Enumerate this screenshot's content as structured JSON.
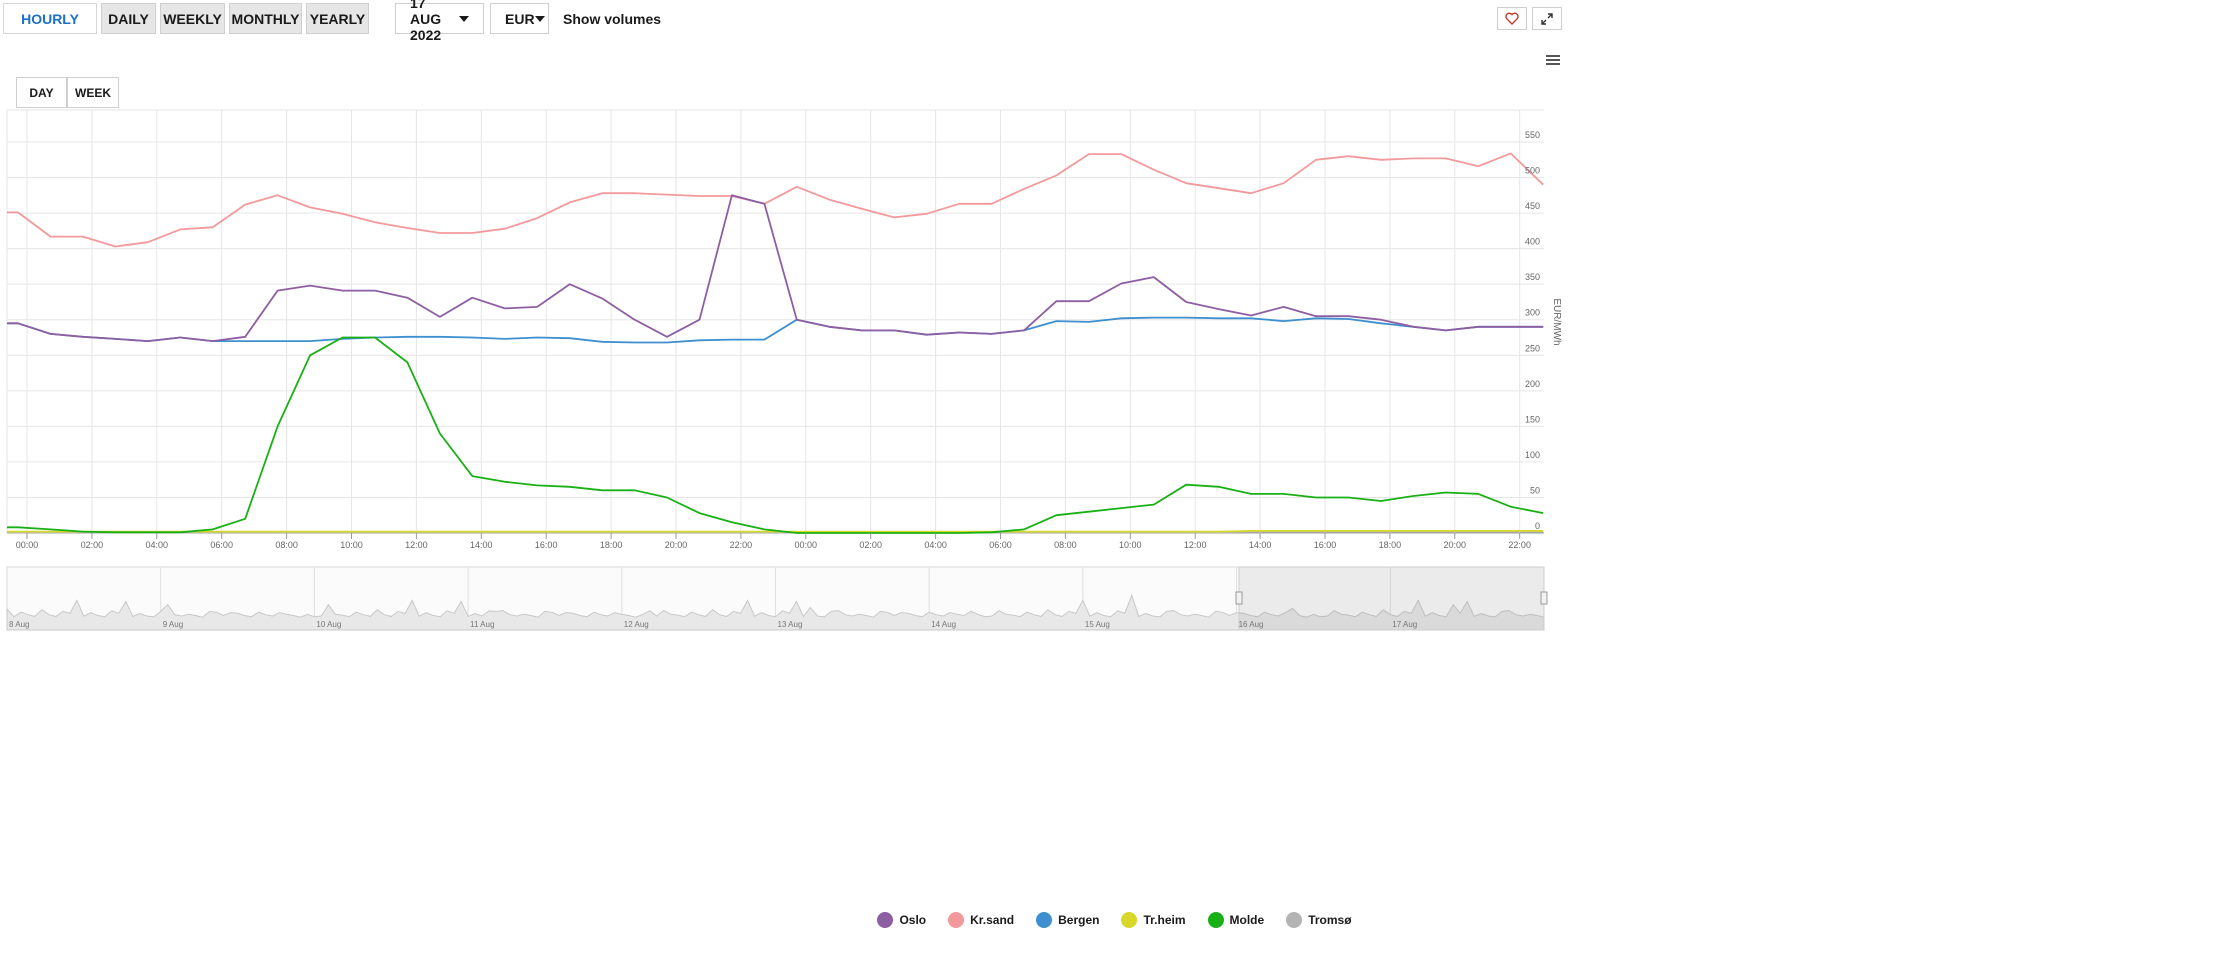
{
  "toolbar": {
    "tabs": [
      {
        "label": "HOURLY",
        "active": true
      },
      {
        "label": "DAILY",
        "active": false
      },
      {
        "label": "WEEKLY",
        "active": false
      },
      {
        "label": "MONTHLY",
        "active": false
      },
      {
        "label": "YEARLY",
        "active": false
      }
    ],
    "date": "17 AUG 2022",
    "currency": "EUR",
    "show_volumes": "Show volumes",
    "favorite_icon": "heart-icon",
    "fullscreen_icon": "expand-icon",
    "menu_icon": "hamburger-menu-icon"
  },
  "range_tabs": [
    {
      "label": "DAY"
    },
    {
      "label": "WEEK"
    }
  ],
  "colors": {
    "Oslo": "#8e5ea2",
    "Kr.sand": "#f4999b",
    "Bergen": "#3d8fcf",
    "Tr.heim": "#d8d82a",
    "Molde": "#19b015",
    "Tromsø": "#b3b3b3"
  },
  "chart_data": {
    "type": "line",
    "ylabel": "EUR/MWh",
    "ylim": [
      0,
      550
    ],
    "yticks": [
      0,
      50,
      100,
      150,
      200,
      250,
      300,
      350,
      400,
      450,
      500,
      550
    ],
    "x_tick_labels": [
      "00:00",
      "02:00",
      "04:00",
      "06:00",
      "08:00",
      "10:00",
      "12:00",
      "14:00",
      "16:00",
      "18:00",
      "20:00",
      "22:00",
      "00:00",
      "02:00",
      "04:00",
      "06:00",
      "08:00",
      "10:00",
      "12:00",
      "14:00",
      "16:00",
      "18:00",
      "20:00",
      "22:00"
    ],
    "x": [
      "2022-08-16T00:00",
      "2022-08-16T01:00",
      "2022-08-16T02:00",
      "2022-08-16T03:00",
      "2022-08-16T04:00",
      "2022-08-16T05:00",
      "2022-08-16T06:00",
      "2022-08-16T07:00",
      "2022-08-16T08:00",
      "2022-08-16T09:00",
      "2022-08-16T10:00",
      "2022-08-16T11:00",
      "2022-08-16T12:00",
      "2022-08-16T13:00",
      "2022-08-16T14:00",
      "2022-08-16T15:00",
      "2022-08-16T16:00",
      "2022-08-16T17:00",
      "2022-08-16T18:00",
      "2022-08-16T19:00",
      "2022-08-16T20:00",
      "2022-08-16T21:00",
      "2022-08-16T22:00",
      "2022-08-16T23:00",
      "2022-08-17T00:00",
      "2022-08-17T01:00",
      "2022-08-17T02:00",
      "2022-08-17T03:00",
      "2022-08-17T04:00",
      "2022-08-17T05:00",
      "2022-08-17T06:00",
      "2022-08-17T07:00",
      "2022-08-17T08:00",
      "2022-08-17T09:00",
      "2022-08-17T10:00",
      "2022-08-17T11:00",
      "2022-08-17T12:00",
      "2022-08-17T13:00",
      "2022-08-17T14:00",
      "2022-08-17T15:00",
      "2022-08-17T16:00",
      "2022-08-17T17:00",
      "2022-08-17T18:00",
      "2022-08-17T19:00",
      "2022-08-17T20:00",
      "2022-08-17T21:00",
      "2022-08-17T22:00",
      "2022-08-17T23:00"
    ],
    "grid": true,
    "legend_position": "bottom",
    "series": [
      {
        "name": "Oslo",
        "values": [
          295,
          280,
          276,
          273,
          270,
          275,
          270,
          276,
          341,
          348,
          341,
          341,
          331,
          304,
          331,
          316,
          318,
          350,
          330,
          300,
          276,
          300,
          475,
          463,
          300,
          290,
          285,
          285,
          279,
          282,
          280,
          285,
          326,
          326,
          351,
          360,
          325,
          315,
          306,
          318,
          305,
          305,
          300,
          290,
          285,
          290,
          290,
          290
        ]
      },
      {
        "name": "Kr.sand",
        "values": [
          451,
          417,
          417,
          403,
          409,
          427,
          430,
          462,
          475,
          458,
          449,
          437,
          429,
          422,
          422,
          428,
          443,
          465,
          478,
          478,
          476,
          474,
          474,
          463,
          487,
          469,
          456,
          444,
          449,
          463,
          463,
          484,
          503,
          533,
          533,
          511,
          492,
          485,
          478,
          492,
          525,
          530,
          525,
          527,
          527,
          516,
          534,
          490
        ]
      },
      {
        "name": "Bergen",
        "values": [
          295,
          280,
          276,
          273,
          270,
          275,
          270,
          270,
          270,
          270,
          273,
          275,
          276,
          276,
          275,
          273,
          275,
          274,
          269,
          268,
          268,
          271,
          272,
          272,
          300,
          290,
          285,
          285,
          279,
          282,
          280,
          285,
          298,
          297,
          302,
          303,
          303,
          302,
          302,
          298,
          302,
          301,
          295,
          290,
          285,
          290,
          290,
          290
        ]
      },
      {
        "name": "Tr.heim",
        "values": [
          2,
          2,
          2,
          2,
          2,
          2,
          2,
          2,
          2,
          2,
          2,
          2,
          2,
          2,
          2,
          2,
          2,
          2,
          2,
          2,
          2,
          2,
          2,
          2,
          2,
          2,
          2,
          2,
          2,
          2,
          2,
          2,
          2,
          2,
          2,
          2,
          2,
          2,
          3,
          3,
          3,
          3,
          3,
          3,
          3,
          3,
          3,
          3
        ]
      },
      {
        "name": "Molde",
        "values": [
          8,
          5,
          2,
          1,
          1,
          1,
          5,
          20,
          150,
          250,
          275,
          275,
          240,
          140,
          80,
          72,
          67,
          65,
          60,
          60,
          50,
          28,
          15,
          5,
          0,
          0,
          0,
          0,
          0,
          0,
          1,
          5,
          25,
          30,
          35,
          40,
          68,
          65,
          55,
          55,
          50,
          50,
          45,
          52,
          57,
          55,
          37,
          28
        ]
      },
      {
        "name": "Tromsø",
        "values": [
          1,
          1,
          1,
          1,
          1,
          1,
          1,
          1,
          1,
          1,
          1,
          1,
          1,
          1,
          1,
          1,
          1,
          1,
          1,
          1,
          1,
          1,
          1,
          1,
          1,
          1,
          1,
          1,
          1,
          1,
          1,
          1,
          1,
          1,
          1,
          1,
          1,
          1,
          2,
          2,
          2,
          2,
          2,
          2,
          2,
          2,
          2,
          2
        ]
      }
    ]
  },
  "navigator": {
    "labels": [
      "8 Aug",
      "9 Aug",
      "10 Aug",
      "11 Aug",
      "12 Aug",
      "13 Aug",
      "14 Aug",
      "15 Aug",
      "16 Aug",
      "17 Aug"
    ],
    "selected_range": [
      "16 Aug",
      "17 Aug"
    ]
  }
}
